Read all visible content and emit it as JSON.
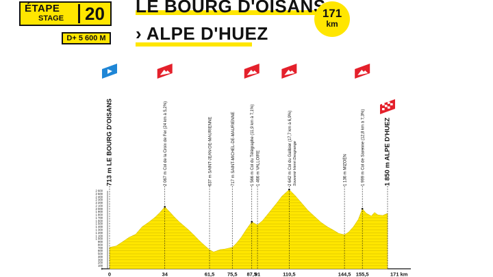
{
  "header": {
    "stage_word_fr": "ÉTAPE",
    "stage_word_en": "STAGE",
    "stage_number": "20",
    "elevation_gain": "D+ 5 600 M",
    "route_line1": "LE BOURG D'OISANS",
    "route_line2": "› ALPE D'HUEZ",
    "distance_value": "171",
    "distance_unit": "km"
  },
  "colors": {
    "yellow": "#ffe600",
    "climb_red": "#e4202b",
    "start_blue": "#1f86d6",
    "ink": "#111111"
  },
  "icons": {
    "start": "start-flag-icon",
    "climb": "mountain-climb-icon",
    "finish": "checkered-finish-icon"
  },
  "waypoints": [
    {
      "km": 0,
      "km_label": "0",
      "label": "713 m LE BOURG D'OISANS",
      "kind": "start"
    },
    {
      "km": 34,
      "km_label": "34",
      "label": "2 067 m Col de la Croix de Fer (24 km à 5,2%)",
      "kind": "climb"
    },
    {
      "km": 61.5,
      "km_label": "61,5",
      "label": "637 m SAINT-JEAN-DE-MAURIENNE",
      "kind": "town"
    },
    {
      "km": 75.5,
      "km_label": "75,5",
      "label": "717 m SAINT-MICHEL-DE-MAURIENNE",
      "kind": "town"
    },
    {
      "km": 87.5,
      "km_label": "87,5",
      "label": "1 566 m Col du Télégraphe (11,9 km à 7,1%)",
      "kind": "climb"
    },
    {
      "km": 91,
      "km_label": "91",
      "label": "1 466 m VALLOIRE",
      "kind": "town"
    },
    {
      "km": 110.5,
      "km_label": "110,5",
      "label": "2 642 m Col du Galibier (17,7 km à 6,9%)",
      "sublabel": "Souvenir Henri Desgrange",
      "kind": "climb"
    },
    {
      "km": 144.5,
      "km_label": "144,5",
      "label": "1 136 m MIZOËN",
      "kind": "town"
    },
    {
      "km": 155.5,
      "km_label": "155,5",
      "label": "1 999 m Col de Sarenne (12,8 km à 7,3%)",
      "kind": "climb"
    },
    {
      "km": 171,
      "km_label": "171 km",
      "label": "1 850 m ALPE D'HUEZ",
      "kind": "finish"
    }
  ],
  "y_axis": {
    "ticks": [
      "2 600",
      "2 500",
      "2 400",
      "2 300",
      "2 200",
      "2 100",
      "2 000",
      "1 900",
      "1 800",
      "1 700",
      "1 600",
      "1 500",
      "1 400",
      "1 300",
      "1 200",
      "1 100",
      "1 000",
      "900",
      "800",
      "700",
      "600",
      "500",
      "400",
      "300",
      "200",
      "100",
      "0"
    ]
  },
  "profile": [
    [
      0,
      713
    ],
    [
      4,
      760
    ],
    [
      8,
      900
    ],
    [
      12,
      1050
    ],
    [
      16,
      1150
    ],
    [
      20,
      1400
    ],
    [
      24,
      1550
    ],
    [
      28,
      1720
    ],
    [
      31,
      1880
    ],
    [
      34,
      2067
    ],
    [
      37,
      1900
    ],
    [
      40,
      1720
    ],
    [
      43,
      1560
    ],
    [
      46,
      1420
    ],
    [
      49,
      1280
    ],
    [
      52,
      1120
    ],
    [
      55,
      950
    ],
    [
      58,
      800
    ],
    [
      61.5,
      637
    ],
    [
      64,
      560
    ],
    [
      66,
      600
    ],
    [
      68,
      640
    ],
    [
      71,
      660
    ],
    [
      75.5,
      717
    ],
    [
      78,
      850
    ],
    [
      81,
      1050
    ],
    [
      84,
      1300
    ],
    [
      87.5,
      1566
    ],
    [
      89,
      1520
    ],
    [
      91,
      1466
    ],
    [
      94,
      1600
    ],
    [
      97,
      1800
    ],
    [
      100,
      2000
    ],
    [
      103,
      2200
    ],
    [
      106,
      2420
    ],
    [
      110.5,
      2642
    ],
    [
      114,
      2450
    ],
    [
      118,
      2200
    ],
    [
      122,
      1950
    ],
    [
      126,
      1750
    ],
    [
      130,
      1550
    ],
    [
      134,
      1400
    ],
    [
      138,
      1280
    ],
    [
      141,
      1180
    ],
    [
      144.5,
      1136
    ],
    [
      147,
      1220
    ],
    [
      150,
      1400
    ],
    [
      153,
      1650
    ],
    [
      155.5,
      1999
    ],
    [
      158,
      1850
    ],
    [
      161,
      1760
    ],
    [
      163,
      1880
    ],
    [
      165,
      1800
    ],
    [
      168,
      1780
    ],
    [
      171,
      1850
    ]
  ]
}
